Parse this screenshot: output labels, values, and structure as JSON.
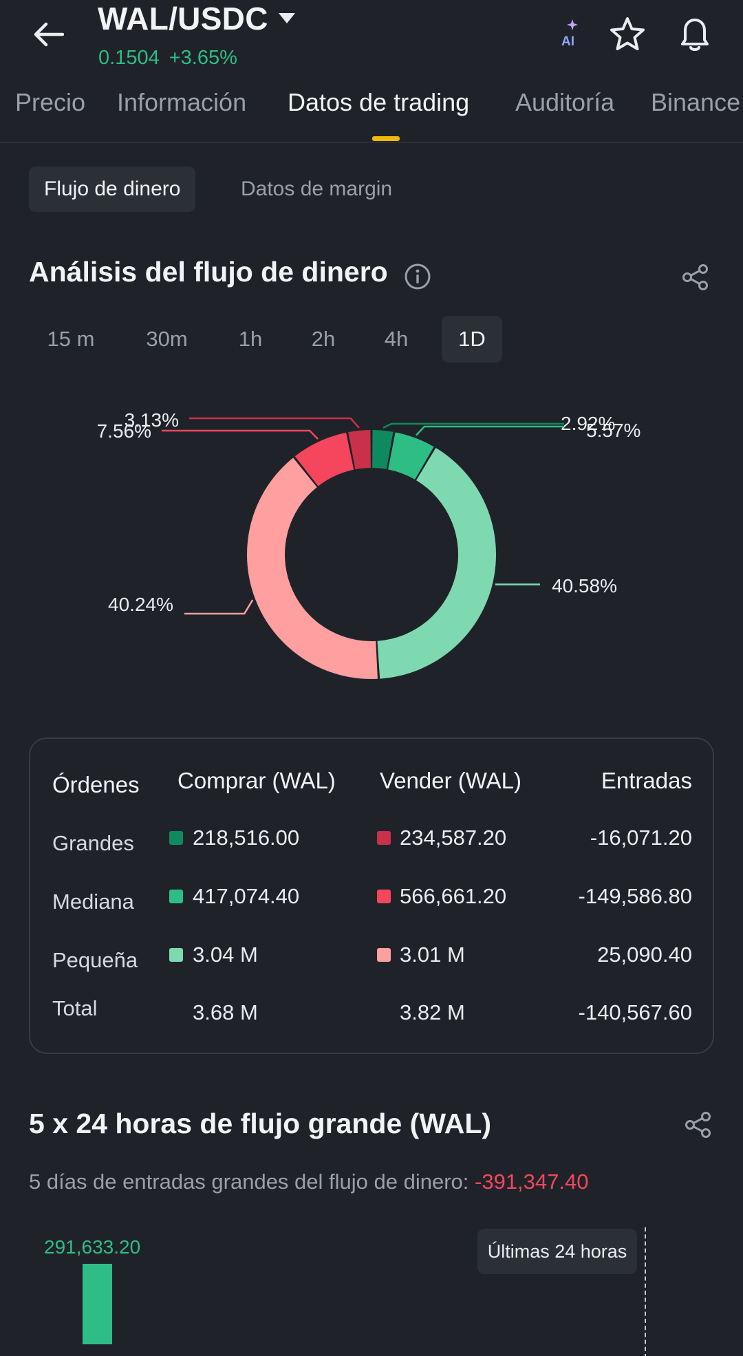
{
  "header": {
    "pair": "WAL/USDC",
    "price": "0.1504",
    "change": "+3.65%",
    "icons": [
      "back-arrow-icon",
      "chevron-down-icon",
      "ai-icon",
      "star-icon",
      "bell-icon"
    ]
  },
  "tabs": [
    "Precio",
    "Información",
    "Datos de trading",
    "Auditoría",
    "Binance"
  ],
  "subtabs": [
    "Flujo de dinero",
    "Datos de margin"
  ],
  "analysis": {
    "title": "Análisis del flujo de dinero",
    "timeframes": [
      "15 m",
      "30m",
      "1h",
      "2h",
      "4h",
      "1D"
    ],
    "active_timeframe": "1D"
  },
  "chart_data": {
    "type": "pie",
    "slices": [
      {
        "value": 2.92,
        "label": "2.92%",
        "color": "#0f8a5f"
      },
      {
        "value": 5.57,
        "label": "5.57%",
        "color": "#2ebd85"
      },
      {
        "value": 40.58,
        "label": "40.58%",
        "color": "#7fd9b0"
      },
      {
        "value": 40.24,
        "label": "40.24%",
        "color": "#ff9f9f"
      },
      {
        "value": 7.56,
        "label": "7.56%",
        "color": "#f6465d"
      },
      {
        "value": 3.13,
        "label": "3.13%",
        "color": "#c9304a"
      }
    ]
  },
  "orders_table": {
    "headers": [
      "Órdenes",
      "Comprar (WAL)",
      "Vender (WAL)",
      "Entradas"
    ],
    "rows": [
      {
        "label": "Grandes",
        "buy": "218,516.00",
        "sell": "234,587.20",
        "inflow": "-16,071.20",
        "buy_color": "#0f8a5f",
        "sell_color": "#c9304a"
      },
      {
        "label": "Mediana",
        "buy": "417,074.40",
        "sell": "566,661.20",
        "inflow": "-149,586.80",
        "buy_color": "#2ebd85",
        "sell_color": "#f6465d"
      },
      {
        "label": "Pequeña",
        "buy": "3.04 M",
        "sell": "3.01 M",
        "inflow": "25,090.40",
        "buy_color": "#7fd9b0",
        "sell_color": "#ff9f9f"
      },
      {
        "label": "Total",
        "buy": "3.68 M",
        "sell": "3.82 M",
        "inflow": "-140,567.60"
      }
    ]
  },
  "large_flow": {
    "title": "5 x 24 horas de flujo grande (WAL)",
    "summary_label": "5 días de entradas grandes del flujo de dinero:",
    "summary_value": "-391,347.40",
    "bar_value_label": "291,633.20",
    "bar_value": 291633.2,
    "tooltip": "Últimas 24 horas"
  }
}
